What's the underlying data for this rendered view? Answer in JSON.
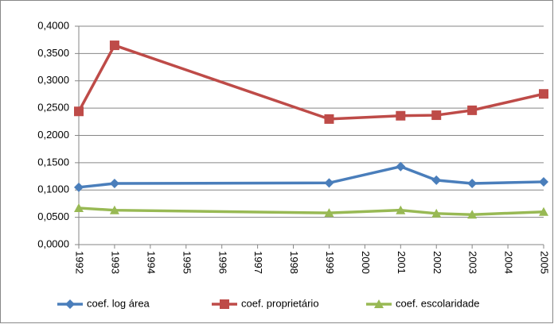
{
  "chart_data": {
    "type": "line",
    "x": [
      1992,
      1993,
      1999,
      2001,
      2002,
      2003,
      2005
    ],
    "xlim": [
      1992,
      2005
    ],
    "xticks": [
      1992,
      1993,
      1994,
      1995,
      1996,
      1997,
      1998,
      1999,
      2000,
      2001,
      2002,
      2003,
      2004,
      2005
    ],
    "ylim": [
      0,
      0.4
    ],
    "yticks": [
      {
        "value": 0,
        "label": "0,0000"
      },
      {
        "value": 0.05,
        "label": "0,0500"
      },
      {
        "value": 0.1,
        "label": "0,1000"
      },
      {
        "value": 0.15,
        "label": "0,1500"
      },
      {
        "value": 0.2,
        "label": "0,2000"
      },
      {
        "value": 0.25,
        "label": "0,2500"
      },
      {
        "value": 0.3,
        "label": "0,3000"
      },
      {
        "value": 0.35,
        "label": "0,3500"
      },
      {
        "value": 0.4,
        "label": "0,4000"
      }
    ],
    "grid": true,
    "legend": "bottom",
    "series": [
      {
        "name": "coef. log área",
        "color": "#4a7ebb",
        "marker": "diamond",
        "values": [
          0.105,
          0.112,
          0.113,
          0.143,
          0.118,
          0.112,
          0.115
        ]
      },
      {
        "name": "coef. proprietário",
        "color": "#be4b48",
        "marker": "square",
        "values": [
          0.244,
          0.365,
          0.23,
          0.236,
          0.237,
          0.246,
          0.276
        ]
      },
      {
        "name": "coef. escolaridade",
        "color": "#98b954",
        "marker": "triangle",
        "values": [
          0.067,
          0.063,
          0.058,
          0.063,
          0.057,
          0.055,
          0.06
        ]
      }
    ]
  }
}
